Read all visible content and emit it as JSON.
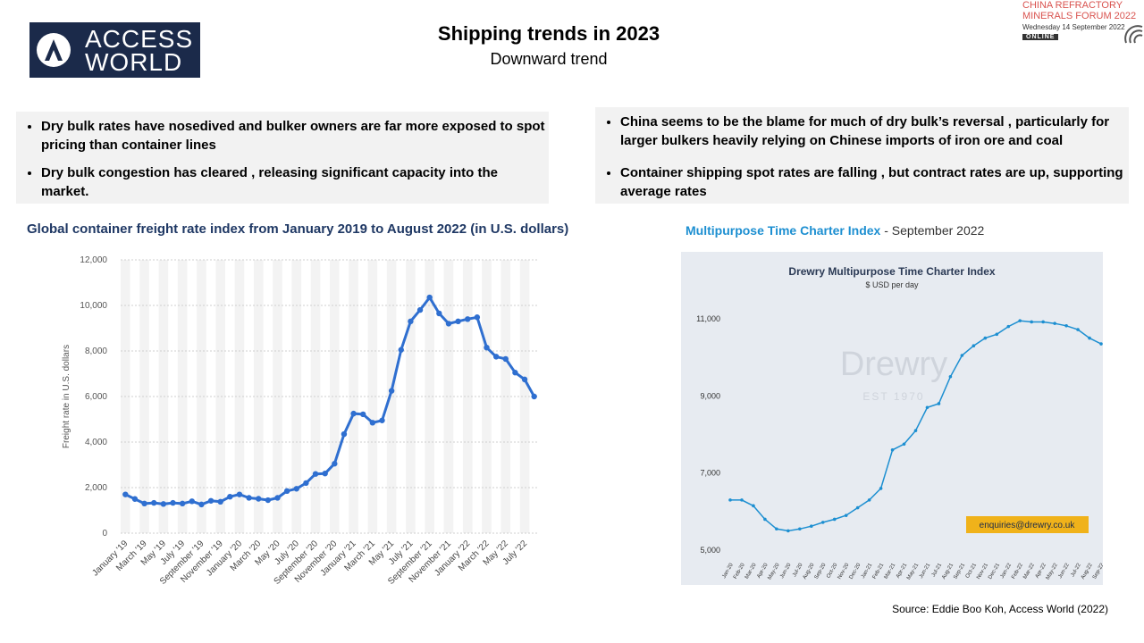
{
  "header": {
    "title": "Shipping trends in 2023",
    "subtitle": "Downward trend"
  },
  "logo": {
    "line1": "ACCESS",
    "line2": "WORLD"
  },
  "event_badge": {
    "line1": "CHINA REFRACTORY",
    "line2": "MINERALS FORUM 2022",
    "line3": "Wednesday 14 September 2022",
    "line4": "ONLINE"
  },
  "bullets_left": [
    "Dry bulk rates have nosedived and bulker owners are far more exposed to spot pricing than container lines",
    "Dry bulk congestion has cleared , releasing significant capacity into the market."
  ],
  "bullets_right": [
    "China seems to be the blame for much of dry bulk’s reversal , particularly for larger bulkers heavily relying on Chinese imports of iron ore and coal",
    "Container shipping spot rates are falling , but contract rates are up, supporting average rates"
  ],
  "source": "Source:  Eddie Boo Koh, Access World (2022)",
  "chart_data": [
    {
      "type": "line",
      "title": "Global container freight rate index from January 2019 to August 2022 (in U.S. dollars)",
      "ylabel": "Freight rate in U.S. dollars",
      "ylim": [
        0,
        12000
      ],
      "yticks": [
        "0",
        "2,000",
        "4,000",
        "6,000",
        "8,000",
        "10,000",
        "12,000"
      ],
      "ytick_values": [
        0,
        2000,
        4000,
        6000,
        8000,
        10000,
        12000
      ],
      "xtick_labels": [
        "January '19",
        "March '19",
        "May '19",
        "July '19",
        "September '19",
        "November '19",
        "January '20",
        "March '20",
        "May '20",
        "July '20",
        "September '20",
        "November '20",
        "January '21",
        "March '21",
        "May '21",
        "July '21",
        "September '21",
        "November '21",
        "January '22",
        "March '22",
        "May '22",
        "July '22"
      ],
      "color": "#2f6fd0",
      "values": [
        1700,
        1500,
        1300,
        1330,
        1280,
        1330,
        1300,
        1400,
        1260,
        1420,
        1380,
        1600,
        1700,
        1550,
        1510,
        1450,
        1550,
        1850,
        1950,
        2200,
        2600,
        2620,
        3050,
        4350,
        5250,
        5220,
        4850,
        4950,
        6250,
        8050,
        9300,
        9800,
        10350,
        9650,
        9200,
        9300,
        9400,
        9480,
        8150,
        7750,
        7650,
        7050,
        6750,
        6000
      ]
    },
    {
      "type": "line",
      "title": "Drewry Multipurpose Time Charter Index",
      "header_main": "Multipurpose Time Charter Index",
      "header_suffix": " - September 2022",
      "subtitle": "$ USD per day",
      "ylim": [
        5000,
        11000
      ],
      "yticks": [
        "5,000",
        "7,000",
        "9,000",
        "11,000"
      ],
      "ytick_values": [
        5000,
        7000,
        9000,
        11000
      ],
      "x": [
        "Jan-20",
        "Feb-20",
        "Mar-20",
        "Apr-20",
        "May-20",
        "Jun-20",
        "Jul-20",
        "Aug-20",
        "Sep-20",
        "Oct-20",
        "Nov-20",
        "Dec-20",
        "Jan-21",
        "Feb-21",
        "Mar-21",
        "Apr-21",
        "May-21",
        "Jun-21",
        "Jul-21",
        "Aug-21",
        "Sep-21",
        "Oct-21",
        "Nov-21",
        "Dec-21",
        "Jan-22",
        "Feb-22",
        "Mar-22",
        "Apr-22",
        "May-22",
        "Jun-22",
        "Jul-22",
        "Aug-22",
        "Sep-22"
      ],
      "values": [
        6300,
        6300,
        6150,
        5800,
        5550,
        5500,
        5550,
        5620,
        5720,
        5800,
        5900,
        6100,
        6300,
        6600,
        7600,
        7750,
        8100,
        8700,
        8800,
        9500,
        10050,
        10300,
        10500,
        10600,
        10800,
        10950,
        10920,
        10920,
        10880,
        10820,
        10720,
        10500,
        10350
      ],
      "color": "#1d8fd1",
      "watermark": "Drewry",
      "watermark_sub": "EST 1970",
      "contact": "enquiries@drewry.co.uk"
    }
  ]
}
